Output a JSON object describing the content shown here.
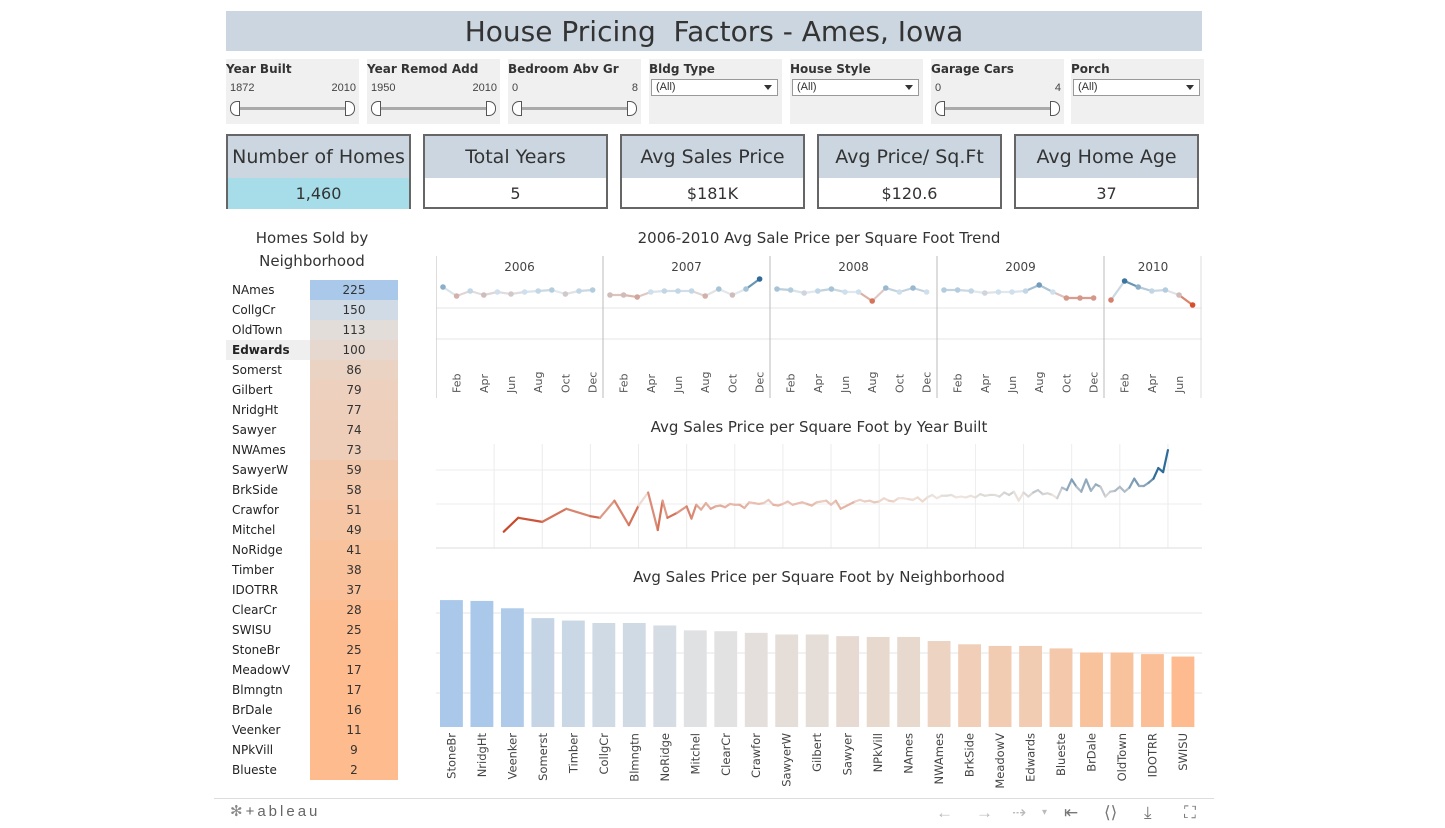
{
  "title": "House Pricing  Factors - Ames, Iowa",
  "filters": [
    {
      "label": "Year Built",
      "type": "slider",
      "min": "1872",
      "max": "2010"
    },
    {
      "label": "Year Remod Add",
      "type": "slider",
      "min": "1950",
      "max": "2010"
    },
    {
      "label": "Bedroom Abv Gr",
      "type": "slider",
      "min": "0",
      "max": "8"
    },
    {
      "label": "Bldg Type",
      "type": "dropdown",
      "value": "(All)"
    },
    {
      "label": "House Style",
      "type": "dropdown",
      "value": "(All)"
    },
    {
      "label": "Garage Cars",
      "type": "slider",
      "min": "0",
      "max": "4"
    },
    {
      "label": "Porch",
      "type": "dropdown",
      "value": "(All)"
    }
  ],
  "kpis": [
    {
      "label": "Number of Homes",
      "value": "1,460"
    },
    {
      "label": "Total Years",
      "value": "5"
    },
    {
      "label": "Avg Sales Price",
      "value": "$181K"
    },
    {
      "label": "Avg Price/ Sq.Ft",
      "value": "$120.6"
    },
    {
      "label": "Avg Home Age",
      "value": "37"
    }
  ],
  "neighborhood_table": {
    "title_line1": "Homes Sold by",
    "title_line2": "Neighborhood",
    "rows": [
      {
        "name": "NAmes",
        "count": "225"
      },
      {
        "name": "CollgCr",
        "count": "150"
      },
      {
        "name": "OldTown",
        "count": "113"
      },
      {
        "name": "Edwards",
        "count": "100"
      },
      {
        "name": "Somerst",
        "count": "86"
      },
      {
        "name": "Gilbert",
        "count": "79"
      },
      {
        "name": "NridgHt",
        "count": "77"
      },
      {
        "name": "Sawyer",
        "count": "74"
      },
      {
        "name": "NWAmes",
        "count": "73"
      },
      {
        "name": "SawyerW",
        "count": "59"
      },
      {
        "name": "BrkSide",
        "count": "58"
      },
      {
        "name": "Crawfor",
        "count": "51"
      },
      {
        "name": "Mitchel",
        "count": "49"
      },
      {
        "name": "NoRidge",
        "count": "41"
      },
      {
        "name": "Timber",
        "count": "38"
      },
      {
        "name": "IDOTRR",
        "count": "37"
      },
      {
        "name": "ClearCr",
        "count": "28"
      },
      {
        "name": "SWISU",
        "count": "25"
      },
      {
        "name": "StoneBr",
        "count": "25"
      },
      {
        "name": "MeadowV",
        "count": "17"
      },
      {
        "name": "Blmngtn",
        "count": "17"
      },
      {
        "name": "BrDale",
        "count": "16"
      },
      {
        "name": "Veenker",
        "count": "11"
      },
      {
        "name": "NPkVill",
        "count": "9"
      },
      {
        "name": "Blueste",
        "count": "2"
      }
    ]
  },
  "chart_data": [
    {
      "type": "line",
      "title": "2006-2010 Avg Sale Price per Square Foot Trend",
      "panels": [
        {
          "year": "2006",
          "months": [
            "Jan",
            "Feb",
            "Mar",
            "Apr",
            "May",
            "Jun",
            "Jul",
            "Aug",
            "Sep",
            "Oct",
            "Nov",
            "Dec"
          ],
          "values": [
            125,
            116,
            121,
            117,
            120,
            118,
            120,
            121,
            122,
            118,
            121,
            122
          ],
          "tick_labels": [
            "Feb",
            "Apr",
            "Jun",
            "Aug",
            "Oct",
            "Dec"
          ]
        },
        {
          "year": "2007",
          "months": [
            "Jan",
            "Feb",
            "Mar",
            "Apr",
            "May",
            "Jun",
            "Jul",
            "Aug",
            "Sep",
            "Oct",
            "Nov",
            "Dec"
          ],
          "values": [
            117,
            117,
            115,
            120,
            121,
            121,
            121,
            116,
            123,
            117,
            123,
            133
          ],
          "tick_labels": [
            "Feb",
            "Apr",
            "Jun",
            "Aug",
            "Oct",
            "Dec"
          ]
        },
        {
          "year": "2008",
          "months": [
            "Jan",
            "Feb",
            "Mar",
            "Apr",
            "May",
            "Jun",
            "Jul",
            "Aug",
            "Sep",
            "Oct",
            "Nov",
            "Dec"
          ],
          "values": [
            123,
            122,
            119,
            121,
            123,
            120,
            120,
            111,
            124,
            120,
            124,
            120
          ],
          "tick_labels": [
            "Feb",
            "Apr",
            "Jun",
            "Aug",
            "Oct",
            "Dec"
          ]
        },
        {
          "year": "2009",
          "months": [
            "Jan",
            "Feb",
            "Mar",
            "Apr",
            "May",
            "Jun",
            "Jul",
            "Aug",
            "Sep",
            "Oct",
            "Nov",
            "Dec"
          ],
          "values": [
            122,
            122,
            121,
            119,
            120,
            120,
            121,
            127,
            120,
            114,
            114,
            114
          ],
          "tick_labels": [
            "Feb",
            "Apr",
            "Jun",
            "Aug",
            "Oct",
            "Dec"
          ]
        },
        {
          "year": "2010",
          "months": [
            "Jan",
            "Feb",
            "Mar",
            "Apr",
            "May",
            "Jun",
            "Jul"
          ],
          "values": [
            112,
            131,
            125,
            121,
            122,
            117,
            107
          ],
          "tick_labels": [
            "Feb",
            "Apr",
            "Jun"
          ]
        }
      ]
    },
    {
      "type": "line",
      "title": "Avg Sales Price per Square Foot by Year Built",
      "x": [
        1872,
        1875,
        1880,
        1885,
        1890,
        1892,
        1895,
        1898,
        1900,
        1902,
        1904,
        1905,
        1906,
        1908,
        1910,
        1911,
        1912,
        1913,
        1914,
        1915,
        1916,
        1917,
        1918,
        1919,
        1920,
        1921,
        1922,
        1923,
        1924,
        1925,
        1926,
        1927,
        1928,
        1929,
        1930,
        1931,
        1932,
        1934,
        1935,
        1936,
        1937,
        1938,
        1939,
        1940,
        1941,
        1942,
        1945,
        1946,
        1947,
        1948,
        1949,
        1950,
        1951,
        1952,
        1953,
        1954,
        1955,
        1956,
        1957,
        1958,
        1959,
        1960,
        1961,
        1962,
        1963,
        1964,
        1965,
        1966,
        1967,
        1968,
        1969,
        1970,
        1971,
        1972,
        1973,
        1974,
        1975,
        1976,
        1977,
        1978,
        1979,
        1980,
        1981,
        1982,
        1983,
        1984,
        1985,
        1986,
        1987,
        1988,
        1989,
        1990,
        1991,
        1992,
        1993,
        1994,
        1995,
        1996,
        1997,
        1998,
        1999,
        2000,
        2001,
        2002,
        2003,
        2004,
        2005,
        2006,
        2007,
        2008,
        2009,
        2010
      ],
      "values": [
        80,
        97,
        92,
        108,
        99,
        97,
        118,
        88,
        112,
        128,
        82,
        118,
        97,
        103,
        111,
        96,
        113,
        107,
        115,
        108,
        111,
        112,
        110,
        114,
        113,
        113,
        109,
        116,
        115,
        114,
        115,
        119,
        113,
        112,
        114,
        117,
        113,
        116,
        114,
        112,
        116,
        117,
        118,
        113,
        118,
        108,
        117,
        119,
        117,
        118,
        116,
        117,
        121,
        118,
        117,
        121,
        121,
        120,
        119,
        122,
        117,
        122,
        125,
        121,
        124,
        124,
        125,
        122,
        123,
        122,
        124,
        122,
        126,
        124,
        125,
        125,
        123,
        128,
        125,
        129,
        118,
        128,
        123,
        128,
        131,
        126,
        127,
        125,
        121,
        134,
        131,
        144,
        135,
        129,
        144,
        130,
        138,
        135,
        123,
        129,
        130,
        135,
        129,
        134,
        145,
        136,
        136,
        140,
        145,
        158,
        153,
        180
      ]
    },
    {
      "type": "bar",
      "title": "Avg Sales Price per Square Foot by Neighborhood",
      "categories": [
        "StoneBr",
        "NridgHt",
        "Veenker",
        "Somerst",
        "Timber",
        "CollgCr",
        "Blmngtn",
        "NoRidge",
        "Mitchel",
        "ClearCr",
        "Crawfor",
        "SawyerW",
        "Gilbert",
        "Sawyer",
        "NPkVill",
        "NAmes",
        "NWAmes",
        "BrkSide",
        "MeadowV",
        "Edwards",
        "Blueste",
        "BrDale",
        "OldTown",
        "IDOTRR",
        "SWISU"
      ],
      "values": [
        155,
        154,
        145,
        133,
        130,
        127,
        127,
        124,
        118,
        117,
        115,
        113,
        113,
        111,
        110,
        110,
        105,
        101,
        99,
        99,
        96,
        91,
        91,
        89,
        86
      ],
      "ylim": [
        0,
        160
      ],
      "grid": true
    }
  ],
  "colors": {
    "header_fill": "#cbd6e0",
    "kpi_highlight": "#a6dde9",
    "diverging_blue": "#2e6b98",
    "diverging_orange": "#d8502a",
    "neutral": "#dce0e4"
  },
  "toolbar": {
    "logo": "+ableau",
    "icons": [
      "tableau-logo-icon",
      "undo-icon",
      "redo-icon",
      "revert-icon",
      "revert-menu-icon",
      "reset-icon",
      "share-icon",
      "download-icon",
      "fullscreen-icon"
    ]
  }
}
